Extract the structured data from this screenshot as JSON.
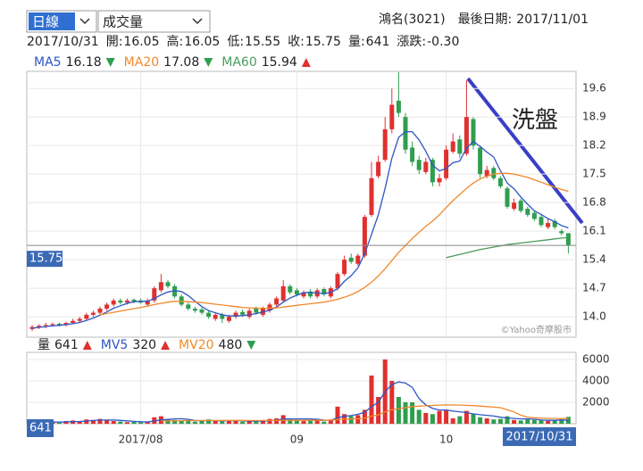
{
  "controls": {
    "period": "日線",
    "indicator": "成交量"
  },
  "header": {
    "name": "鴻名(3021)",
    "last_date_label": "最後日期:",
    "last_date": "2017/11/01"
  },
  "info": {
    "date": "2017/10/31",
    "fields": [
      {
        "label": "開:",
        "value": "16.05"
      },
      {
        "label": "高:",
        "value": "16.05"
      },
      {
        "label": "低:",
        "value": "15.55"
      },
      {
        "label": "收:",
        "value": "15.75"
      },
      {
        "label": "量:",
        "value": "641"
      },
      {
        "label": "漲跌:",
        "value": "-0.30"
      }
    ]
  },
  "chart_data": [
    {
      "type": "candlestick",
      "categories": [
        null,
        null,
        null,
        null,
        null,
        null,
        null,
        null,
        null,
        null,
        null,
        null,
        null,
        null,
        null,
        null,
        "2017/08",
        null,
        null,
        null,
        null,
        null,
        null,
        null,
        null,
        null,
        null,
        null,
        null,
        null,
        null,
        null,
        null,
        null,
        null,
        null,
        null,
        null,
        null,
        "09",
        null,
        null,
        null,
        null,
        null,
        null,
        null,
        null,
        null,
        null,
        null,
        null,
        null,
        null,
        null,
        null,
        null,
        null,
        null,
        null,
        null,
        "10",
        null,
        null,
        null,
        null,
        null,
        null,
        null,
        null,
        null,
        null,
        null,
        null,
        null,
        null,
        null,
        null,
        null,
        null
      ],
      "open": [
        13.7,
        13.75,
        13.78,
        13.8,
        13.83,
        13.8,
        13.85,
        13.9,
        13.95,
        14.05,
        14.1,
        14.2,
        14.3,
        14.4,
        14.35,
        14.42,
        14.4,
        14.3,
        14.4,
        14.65,
        14.85,
        14.75,
        14.5,
        14.3,
        14.2,
        14.18,
        14.1,
        13.95,
        14.05,
        13.9,
        14.0,
        14.12,
        14.0,
        14.2,
        14.05,
        14.15,
        14.3,
        14.4,
        14.75,
        14.65,
        14.5,
        14.62,
        14.5,
        14.68,
        14.5,
        14.7,
        15.05,
        15.45,
        15.3,
        15.5,
        16.5,
        17.45,
        17.85,
        18.6,
        19.3,
        18.9,
        18.15,
        17.85,
        17.55,
        17.85,
        17.3,
        17.4,
        18.05,
        18.35,
        18.0,
        18.85,
        18.15,
        17.45,
        17.65,
        17.4,
        17.15,
        16.65,
        16.85,
        16.65,
        16.55,
        16.45,
        16.2,
        16.35,
        16.1,
        16.05
      ],
      "high": [
        13.8,
        13.82,
        13.85,
        13.86,
        13.86,
        13.88,
        13.95,
        14.0,
        14.1,
        14.15,
        14.25,
        14.35,
        14.45,
        14.45,
        14.45,
        14.45,
        14.45,
        14.45,
        14.75,
        15.05,
        14.9,
        14.8,
        14.55,
        14.35,
        14.25,
        14.22,
        14.15,
        14.1,
        14.1,
        14.05,
        14.15,
        14.18,
        14.2,
        14.25,
        14.25,
        14.35,
        14.5,
        14.9,
        14.8,
        14.7,
        14.65,
        14.68,
        14.7,
        14.72,
        14.75,
        15.1,
        15.5,
        15.55,
        15.55,
        16.5,
        17.8,
        17.95,
        18.9,
        19.6,
        20.0,
        19.0,
        18.3,
        17.95,
        17.9,
        17.9,
        17.5,
        18.2,
        18.5,
        18.45,
        19.8,
        18.9,
        18.2,
        17.7,
        17.7,
        17.45,
        17.2,
        16.9,
        16.9,
        16.7,
        16.6,
        16.5,
        16.4,
        16.4,
        16.15,
        16.05
      ],
      "low": [
        13.65,
        13.7,
        13.72,
        13.76,
        13.76,
        13.76,
        13.82,
        13.86,
        13.92,
        14.0,
        14.05,
        14.15,
        14.25,
        14.3,
        14.3,
        14.33,
        14.32,
        14.25,
        14.35,
        14.6,
        14.7,
        14.45,
        14.25,
        14.15,
        14.1,
        14.05,
        13.95,
        13.9,
        13.85,
        13.85,
        13.95,
        14.0,
        13.95,
        14.05,
        14.0,
        14.1,
        14.25,
        14.35,
        14.55,
        14.5,
        14.45,
        14.45,
        14.45,
        14.5,
        14.45,
        14.65,
        15.0,
        15.3,
        15.25,
        15.45,
        16.45,
        17.4,
        17.8,
        18.5,
        18.9,
        18.0,
        17.7,
        17.5,
        17.5,
        17.2,
        17.2,
        17.35,
        18.0,
        17.9,
        17.95,
        18.1,
        17.4,
        17.4,
        17.35,
        17.15,
        16.65,
        16.6,
        16.55,
        16.45,
        16.35,
        16.2,
        16.15,
        16.15,
        16.0,
        15.55
      ],
      "close": [
        13.75,
        13.78,
        13.8,
        13.82,
        13.8,
        13.85,
        13.9,
        13.95,
        14.05,
        14.1,
        14.2,
        14.3,
        14.4,
        14.35,
        14.4,
        14.38,
        14.35,
        14.4,
        14.7,
        14.85,
        14.75,
        14.5,
        14.3,
        14.2,
        14.15,
        14.1,
        14.0,
        14.05,
        13.95,
        14.0,
        14.1,
        14.05,
        14.15,
        14.1,
        14.2,
        14.3,
        14.45,
        14.75,
        14.6,
        14.55,
        14.6,
        14.5,
        14.65,
        14.55,
        14.7,
        15.05,
        15.4,
        15.35,
        15.5,
        16.45,
        17.4,
        17.8,
        18.6,
        19.2,
        19.0,
        18.1,
        17.8,
        17.6,
        17.8,
        17.3,
        17.4,
        18.1,
        18.3,
        18.0,
        18.9,
        18.2,
        17.5,
        17.6,
        17.4,
        17.2,
        16.7,
        16.8,
        16.6,
        16.5,
        16.4,
        16.25,
        16.3,
        16.2,
        16.05,
        15.75
      ],
      "up_color": "#e0302f",
      "down_color": "#2f9e4f",
      "series": [
        {
          "name": "MA5",
          "color": "#2d56c6",
          "trend": "down",
          "values": [
            13.72,
            13.74,
            13.76,
            13.78,
            13.79,
            13.81,
            13.83,
            13.86,
            13.91,
            13.97,
            14.04,
            14.12,
            14.21,
            14.27,
            14.33,
            14.37,
            14.38,
            14.38,
            14.45,
            14.54,
            14.61,
            14.64,
            14.62,
            14.52,
            14.38,
            14.25,
            14.15,
            14.1,
            14.05,
            14.02,
            14.02,
            14.03,
            14.05,
            14.08,
            14.12,
            14.16,
            14.24,
            14.36,
            14.46,
            14.53,
            14.59,
            14.6,
            14.58,
            14.57,
            14.6,
            14.69,
            14.87,
            15.01,
            15.2,
            15.55,
            16.02,
            16.5,
            17.15,
            17.89,
            18.4,
            18.54,
            18.54,
            18.34,
            18.06,
            17.72,
            17.58,
            17.64,
            17.78,
            17.82,
            18.14,
            18.3,
            18.18,
            18.04,
            17.92,
            17.58,
            17.28,
            17.14,
            16.94,
            16.76,
            16.6,
            16.51,
            16.41,
            16.33,
            16.24,
            16.18
          ]
        },
        {
          "name": "MA20",
          "color": "#f0892b",
          "trend": "down",
          "values": [
            null,
            null,
            null,
            null,
            null,
            null,
            null,
            null,
            null,
            null,
            14.05,
            14.08,
            14.11,
            14.14,
            14.17,
            14.2,
            14.23,
            14.26,
            14.3,
            14.33,
            14.36,
            14.38,
            14.38,
            14.37,
            14.36,
            14.35,
            14.33,
            14.31,
            14.29,
            14.27,
            14.25,
            14.23,
            14.22,
            14.21,
            14.21,
            14.21,
            14.22,
            14.24,
            14.26,
            14.28,
            14.3,
            14.32,
            14.34,
            14.36,
            14.39,
            14.43,
            14.48,
            14.54,
            14.62,
            14.72,
            14.85,
            15.0,
            15.18,
            15.38,
            15.58,
            15.75,
            15.92,
            16.07,
            16.22,
            16.35,
            16.5,
            16.68,
            16.85,
            17.0,
            17.15,
            17.28,
            17.38,
            17.45,
            17.5,
            17.52,
            17.52,
            17.5,
            17.46,
            17.42,
            17.36,
            17.3,
            17.24,
            17.18,
            17.12,
            17.08
          ]
        },
        {
          "name": "MA60",
          "color": "#4a9a5e",
          "trend": "up",
          "values": [
            null,
            null,
            null,
            null,
            null,
            null,
            null,
            null,
            null,
            null,
            null,
            null,
            null,
            null,
            null,
            null,
            null,
            null,
            null,
            null,
            null,
            null,
            null,
            null,
            null,
            null,
            null,
            null,
            null,
            null,
            null,
            null,
            null,
            null,
            null,
            null,
            null,
            null,
            null,
            null,
            null,
            null,
            null,
            null,
            null,
            null,
            null,
            null,
            null,
            null,
            null,
            null,
            null,
            null,
            null,
            null,
            null,
            null,
            null,
            null,
            null,
            15.45,
            15.49,
            15.53,
            15.57,
            15.61,
            15.65,
            15.68,
            15.71,
            15.74,
            15.77,
            15.79,
            15.81,
            15.83,
            15.85,
            15.87,
            15.89,
            15.91,
            15.93,
            15.94
          ]
        }
      ],
      "ylim": [
        13.5,
        20.02
      ],
      "yticks": [
        19.6,
        18.9,
        18.2,
        17.5,
        16.8,
        16.1,
        15.4,
        14.7,
        {
          "value": 14,
          "label": "14.0"
        }
      ],
      "grid": true,
      "annotation": "洗盤",
      "watermark": "©Yahoo奇摩股市"
    },
    {
      "type": "bar",
      "name": "量",
      "trend": "up",
      "values": [
        150,
        200,
        120,
        180,
        100,
        250,
        300,
        200,
        400,
        350,
        450,
        300,
        250,
        200,
        150,
        180,
        120,
        200,
        600,
        700,
        400,
        350,
        300,
        250,
        200,
        300,
        400,
        250,
        200,
        250,
        300,
        200,
        250,
        200,
        300,
        450,
        500,
        800,
        400,
        300,
        250,
        300,
        350,
        200,
        400,
        1600,
        900,
        700,
        800,
        1300,
        4500,
        2500,
        6000,
        4000,
        2500,
        2000,
        2000,
        1300,
        1000,
        900,
        1200,
        1300,
        500,
        700,
        1200,
        900,
        600,
        500,
        400,
        450,
        700,
        350,
        300,
        400,
        350,
        300,
        250,
        300,
        400,
        641
      ],
      "series": [
        {
          "name": "MV5",
          "color": "#2d56c6",
          "trend": "up",
          "values": [
            150,
            170,
            160,
            170,
            150,
            170,
            190,
            210,
            250,
            300,
            340,
            340,
            350,
            310,
            270,
            220,
            180,
            170,
            250,
            360,
            400,
            450,
            470,
            400,
            300,
            280,
            300,
            280,
            270,
            280,
            280,
            280,
            240,
            240,
            250,
            280,
            340,
            450,
            450,
            450,
            450,
            450,
            420,
            340,
            300,
            570,
            690,
            760,
            880,
            1060,
            1600,
            2000,
            3000,
            3660,
            3900,
            3800,
            3400,
            2360,
            1760,
            1440,
            1280,
            1280,
            1180,
            1120,
            1040,
            920,
            840,
            780,
            720,
            610,
            530,
            490,
            450,
            460,
            420,
            340,
            320,
            320,
            350,
            320
          ]
        },
        {
          "name": "MV20",
          "color": "#f0892b",
          "trend": "down",
          "values": [
            null,
            null,
            null,
            null,
            null,
            null,
            null,
            null,
            null,
            null,
            null,
            null,
            null,
            null,
            null,
            null,
            null,
            null,
            null,
            250,
            260,
            270,
            280,
            290,
            290,
            300,
            300,
            300,
            305,
            305,
            305,
            305,
            300,
            300,
            300,
            300,
            305,
            320,
            320,
            320,
            320,
            320,
            320,
            320,
            325,
            390,
            420,
            440,
            460,
            510,
            710,
            820,
            1110,
            1300,
            1410,
            1500,
            1590,
            1640,
            1680,
            1710,
            1740,
            1760,
            1750,
            1740,
            1720,
            1690,
            1650,
            1600,
            1550,
            1500,
            1300,
            1100,
            800,
            620,
            560,
            520,
            500,
            490,
            485,
            480
          ]
        }
      ],
      "ylim": [
        0,
        6670
      ],
      "yticks": [
        6000,
        4000,
        2000
      ],
      "grid": true
    }
  ]
}
